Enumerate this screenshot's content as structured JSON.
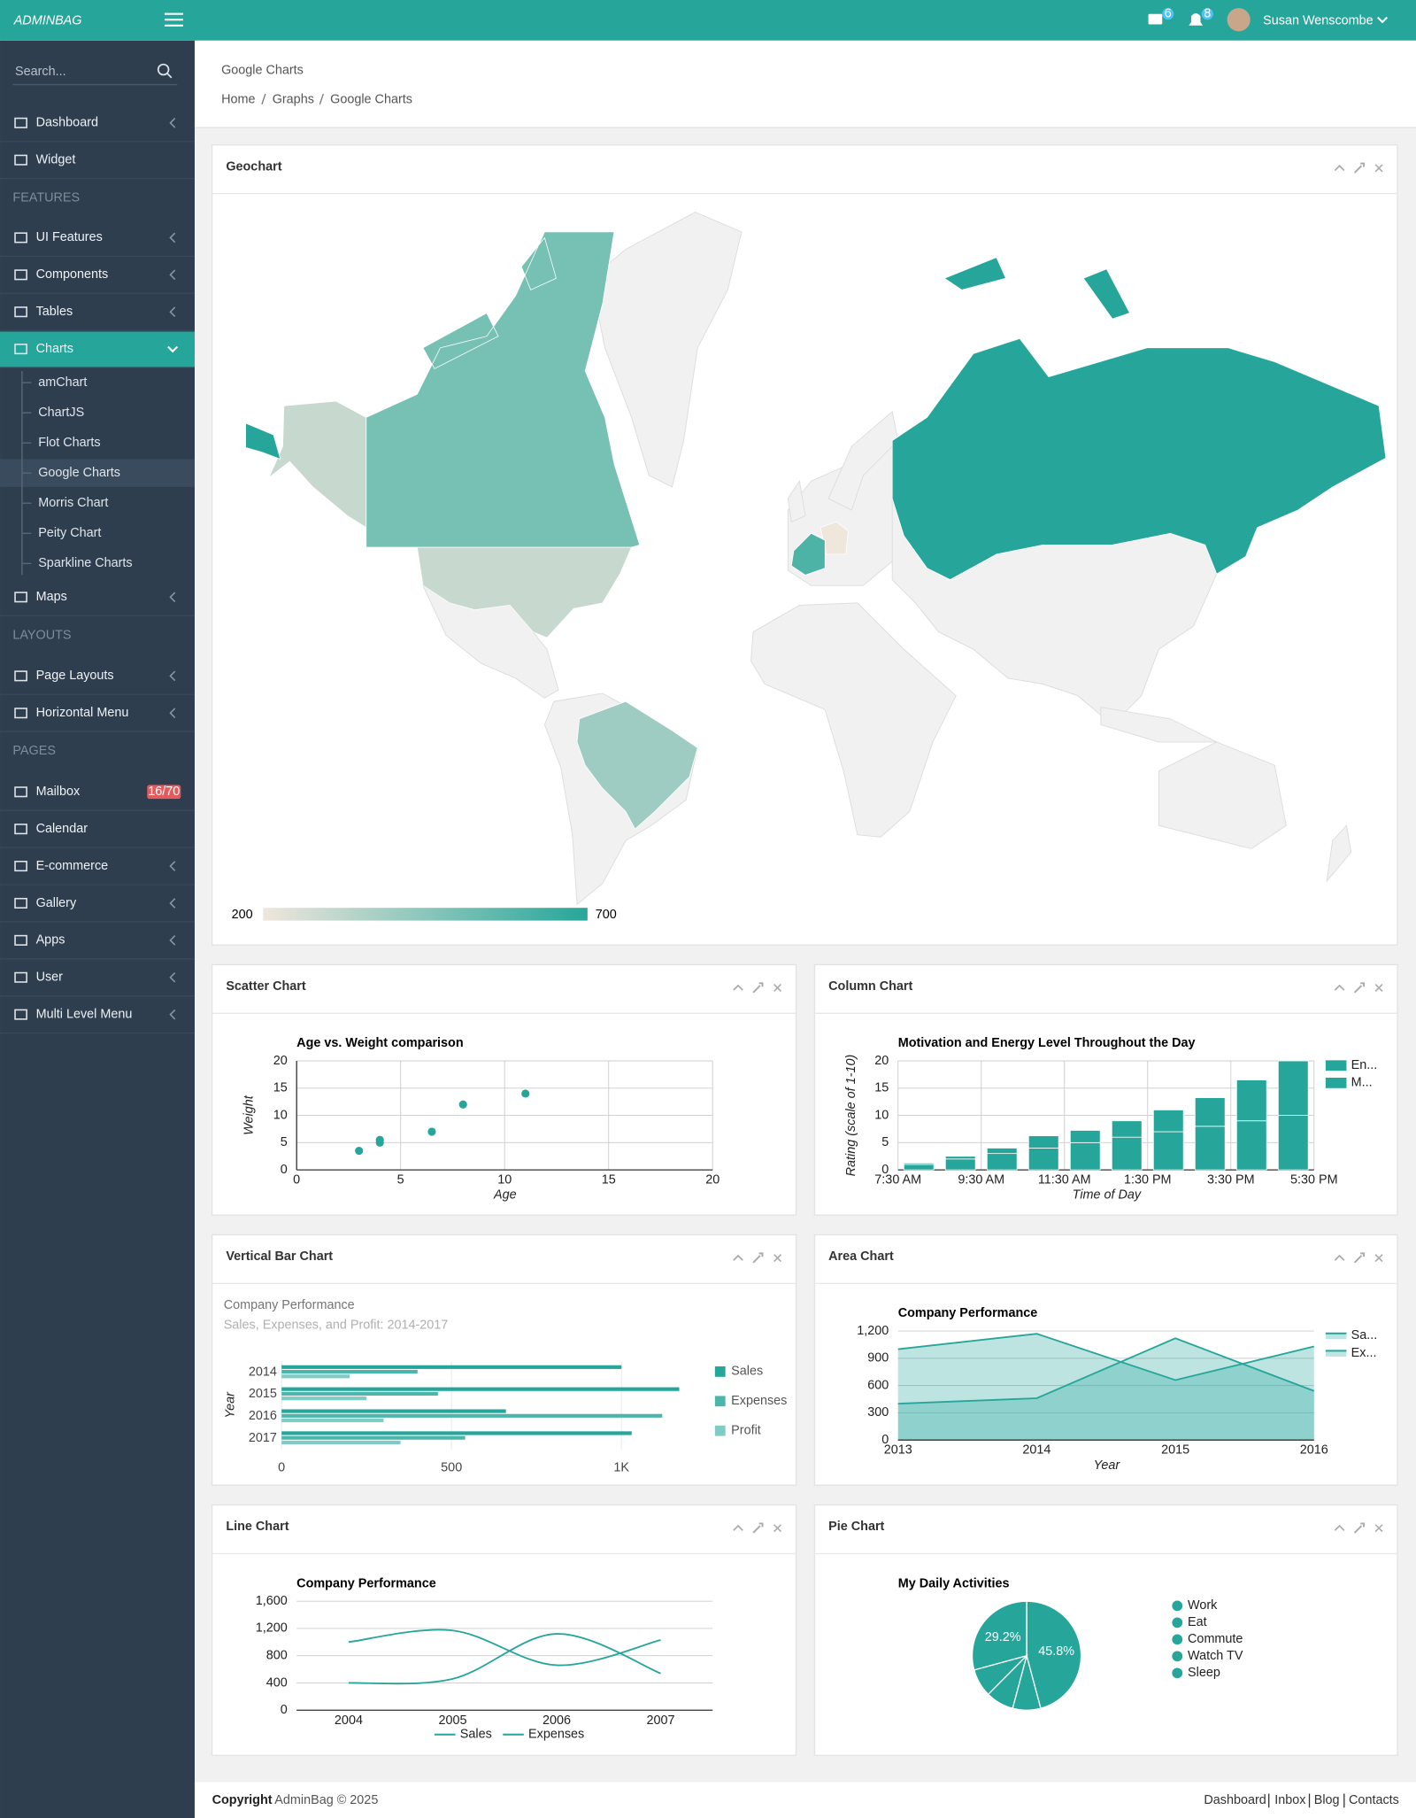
{
  "topbar": {
    "brand": "ADMINBAG",
    "messages": 6,
    "notifications": 8,
    "user": "Susan Wenscombe"
  },
  "sidebar": {
    "search": "Search...",
    "menu": [
      "Dashboard",
      "Widget",
      "FEATURES",
      "UI Features",
      "Components",
      "Tables",
      "Charts",
      "amChart",
      "ChartJS",
      "Flot Charts",
      "Google Charts",
      "Morris Chart",
      "Peity Chart",
      "Sparkline Charts",
      "Maps",
      "LAYOUTS",
      "Page Layouts",
      "Horizontal Menu",
      "PAGES",
      "Mailbox",
      "Calendar",
      "E-commerce",
      "Gallery",
      "Apps",
      "User",
      "Multi Level Menu"
    ],
    "mailbox_badge": "16/70"
  },
  "page_header": {
    "title": "Google Charts",
    "breadcrumb": [
      "Home",
      "Graphs",
      "Google Charts"
    ]
  },
  "panels": [
    "Geochart",
    "Scatter Chart",
    "Column Chart",
    "Vertical Bar Chart",
    "Area Chart",
    "Line Chart",
    "Pie Chart"
  ],
  "footer": {
    "copyright": "Copyright",
    "text": "AdminBag © 2025",
    "links": [
      "Dashboard",
      "Inbox",
      "Blog",
      "Contacts"
    ]
  },
  "chart_data": [
    {
      "type": "geo",
      "regions": [
        "Germany",
        "United States",
        "Brazil",
        "Canada",
        "France",
        "RU"
      ],
      "values": [
        200,
        300,
        400,
        500,
        600,
        700
      ],
      "colorlim": [
        200,
        700
      ],
      "colors": [
        "#efe6dc",
        "#26a69a"
      ]
    },
    {
      "type": "scatter",
      "title": "Age vs. Weight comparison",
      "x": [
        8,
        4,
        11,
        4,
        3,
        6.5
      ],
      "values": [
        12,
        5.5,
        14,
        5,
        3.5,
        7
      ],
      "xlim": [
        0,
        20
      ],
      "ylim": [
        0,
        20
      ],
      "xticks": [
        0,
        5,
        10,
        15,
        20
      ],
      "yticks": [
        0,
        5,
        10,
        15,
        20
      ],
      "xlabel": "Age",
      "ylabel": "Weight",
      "color": "#26a69a",
      "grid": true
    },
    {
      "type": "column",
      "stacked": true,
      "title": "Motivation and Energy Level Throughout the Day",
      "x": [
        8,
        9,
        10,
        11,
        12,
        13,
        14,
        15,
        16,
        17
      ],
      "series": [
        {
          "name": "M...",
          "color": "#26a69a",
          "values": [
            1,
            2,
            3,
            4,
            5,
            6,
            7,
            8,
            9,
            10
          ]
        },
        {
          "name": "En...",
          "color": "#26a69a",
          "values": [
            0.25,
            0.5,
            1,
            2.25,
            2.25,
            3,
            4,
            5.25,
            7.5,
            10
          ]
        }
      ],
      "xlim": [
        7.5,
        17.5
      ],
      "xticks": [
        {
          "value": 7.5,
          "label": "7:30 AM"
        },
        {
          "value": 9.5,
          "label": "9:30 AM"
        },
        {
          "value": 11.5,
          "label": "11:30 AM"
        },
        {
          "value": 13.5,
          "label": "1:30 PM"
        },
        {
          "value": 15.5,
          "label": "3:30 PM"
        },
        {
          "value": 17.5,
          "label": "5:30 PM"
        }
      ],
      "ylim": [
        0,
        20
      ],
      "yticks": [
        0,
        5,
        10,
        15,
        20
      ],
      "xlabel": "Time of Day",
      "ylabel": "Rating (scale of 1-10)",
      "grid": true
    },
    {
      "type": "hbar",
      "title": "Company Performance",
      "subtitle": "Sales, Expenses, and Profit: 2014-2017",
      "categories": [
        "2014",
        "2015",
        "2016",
        "2017"
      ],
      "series": [
        {
          "name": "Sales",
          "color": "#26a69a",
          "values": [
            1000,
            1170,
            660,
            1030
          ]
        },
        {
          "name": "Expenses",
          "color": "#4db6ac",
          "values": [
            400,
            460,
            1120,
            540
          ]
        },
        {
          "name": "Profit",
          "color": "#80cbc4",
          "values": [
            200,
            250,
            300,
            350
          ]
        }
      ],
      "xlim": [
        0,
        1200
      ],
      "xticks": [
        0,
        500,
        {
          "value": 1000,
          "label": "1K"
        }
      ],
      "ylabel": "Year",
      "grid": true
    },
    {
      "type": "area",
      "title": "Company Performance",
      "categories": [
        "2013",
        "2014",
        "2015",
        "2016"
      ],
      "series": [
        {
          "name": "Sa...",
          "color": "#26a69a",
          "values": [
            1000,
            1170,
            660,
            1030
          ]
        },
        {
          "name": "Ex...",
          "color": "#26a69a",
          "values": [
            400,
            460,
            1120,
            540
          ]
        }
      ],
      "ylim": [
        0,
        1200
      ],
      "yticks": [
        0,
        300,
        600,
        900,
        {
          "value": 1200,
          "label": "1,200"
        }
      ],
      "xlabel": "Year",
      "grid": true
    },
    {
      "type": "line",
      "title": "Company Performance",
      "categories": [
        "2004",
        "2005",
        "2006",
        "2007"
      ],
      "series": [
        {
          "name": "Sales",
          "color": "#26a69a",
          "values": [
            1000,
            1170,
            660,
            1030
          ]
        },
        {
          "name": "Expenses",
          "color": "#26a69a",
          "values": [
            400,
            460,
            1120,
            540
          ]
        }
      ],
      "ylim": [
        0,
        1600
      ],
      "yticks": [
        0,
        400,
        800,
        {
          "value": 1200,
          "label": "1,200"
        },
        {
          "value": 1600,
          "label": "1,600"
        }
      ],
      "curve": "smooth",
      "grid": true
    },
    {
      "type": "pie",
      "title": "My Daily Activities",
      "categories": [
        "Work",
        "Eat",
        "Commute",
        "Watch TV",
        "Sleep"
      ],
      "values": [
        45.8,
        8.3,
        8.3,
        8.3,
        29.2
      ],
      "value_labels": [
        "45.8%",
        null,
        null,
        null,
        "29.2%"
      ],
      "color": "#26a69a"
    }
  ]
}
